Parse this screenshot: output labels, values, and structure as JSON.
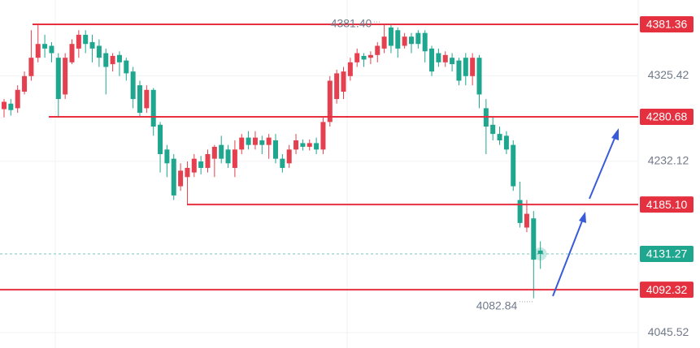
{
  "chart_data": {
    "type": "candlestick",
    "ylim": [
      4028.8,
      4407.9
    ],
    "yticks": [
      4045.52,
      4232.12,
      4325.42
    ],
    "up_color": "#e5404f",
    "down_color": "#1fa68f",
    "level_color": "#e5313f",
    "last_color": "#1fa68f",
    "levels": [
      4381.36,
      4280.68,
      {
        "value": 4185.1,
        "label": "4185.10"
      },
      4092.32
    ],
    "annotations": [
      {
        "value": 4381.4,
        "label": "4381.40"
      },
      {
        "value": 4082.84,
        "label": "4082.84"
      }
    ],
    "candles": {
      "open": [
        4289,
        4295,
        4290,
        4308,
        4325,
        4345,
        4360,
        4358,
        4345,
        4305,
        4340,
        4355,
        4370,
        4362,
        4358,
        4350,
        4338,
        4348,
        4342,
        4330,
        4315,
        4290,
        4310,
        4272,
        4245,
        4235,
        4205,
        4215,
        4220,
        4232,
        4225,
        4235,
        4250,
        4245,
        4225,
        4245,
        4258,
        4250,
        4255,
        4250,
        4255,
        4235,
        4230,
        4245,
        4252,
        4248,
        4252,
        4245,
        4275,
        4300,
        4308,
        4325,
        4340,
        4347,
        4345,
        4348,
        4355,
        4378,
        4375,
        4358,
        4368,
        4372,
        4372,
        4355,
        4350,
        4340,
        4345,
        4342,
        4345,
        4325,
        4345,
        4290,
        4272,
        4262,
        4260,
        4250,
        4190,
        4160,
        4170,
        4135
      ],
      "high": [
        4300,
        4300,
        4315,
        4330,
        4375,
        4381,
        4370,
        4362,
        4350,
        4350,
        4365,
        4375,
        4375,
        4370,
        4365,
        4355,
        4350,
        4352,
        4345,
        4335,
        4320,
        4315,
        4312,
        4275,
        4250,
        4240,
        4230,
        4232,
        4240,
        4238,
        4245,
        4250,
        4260,
        4250,
        4255,
        4262,
        4265,
        4265,
        4260,
        4262,
        4262,
        4240,
        4250,
        4262,
        4256,
        4256,
        4258,
        4280,
        4325,
        4332,
        4335,
        4345,
        4355,
        4350,
        4352,
        4362,
        4381,
        4381,
        4378,
        4372,
        4372,
        4375,
        4375,
        4358,
        4355,
        4352,
        4350,
        4345,
        4350,
        4350,
        4348,
        4300,
        4280,
        4270,
        4265,
        4255,
        4210,
        4190,
        4178,
        4145
      ],
      "low": [
        4280,
        4282,
        4285,
        4305,
        4320,
        4340,
        4345,
        4340,
        4280,
        4300,
        4338,
        4345,
        4350,
        4340,
        4335,
        4305,
        4330,
        4325,
        4320,
        4290,
        4280,
        4285,
        4260,
        4220,
        4215,
        4190,
        4200,
        4185,
        4215,
        4218,
        4220,
        4215,
        4230,
        4225,
        4215,
        4240,
        4245,
        4245,
        4240,
        4235,
        4230,
        4220,
        4225,
        4240,
        4244,
        4244,
        4240,
        4240,
        4270,
        4295,
        4300,
        4320,
        4335,
        4335,
        4338,
        4340,
        4350,
        4350,
        4345,
        4355,
        4350,
        4355,
        4340,
        4325,
        4335,
        4335,
        4330,
        4315,
        4315,
        4315,
        4290,
        4240,
        4255,
        4250,
        4240,
        4200,
        4160,
        4155,
        4083,
        4115
      ],
      "close": [
        4297,
        4288,
        4310,
        4325,
        4345,
        4360,
        4355,
        4350,
        4300,
        4345,
        4360,
        4370,
        4360,
        4355,
        4345,
        4335,
        4347,
        4340,
        4328,
        4300,
        4285,
        4310,
        4270,
        4240,
        4230,
        4195,
        4222,
        4225,
        4235,
        4225,
        4240,
        4248,
        4235,
        4230,
        4245,
        4258,
        4250,
        4258,
        4250,
        4258,
        4235,
        4225,
        4245,
        4255,
        4248,
        4252,
        4245,
        4275,
        4320,
        4328,
        4330,
        4340,
        4350,
        4343,
        4348,
        4358,
        4368,
        4358,
        4355,
        4368,
        4360,
        4360,
        4352,
        4330,
        4340,
        4348,
        4338,
        4320,
        4325,
        4345,
        4305,
        4270,
        4262,
        4255,
        4245,
        4205,
        4165,
        4175,
        4125,
        4131.27
      ]
    }
  }
}
